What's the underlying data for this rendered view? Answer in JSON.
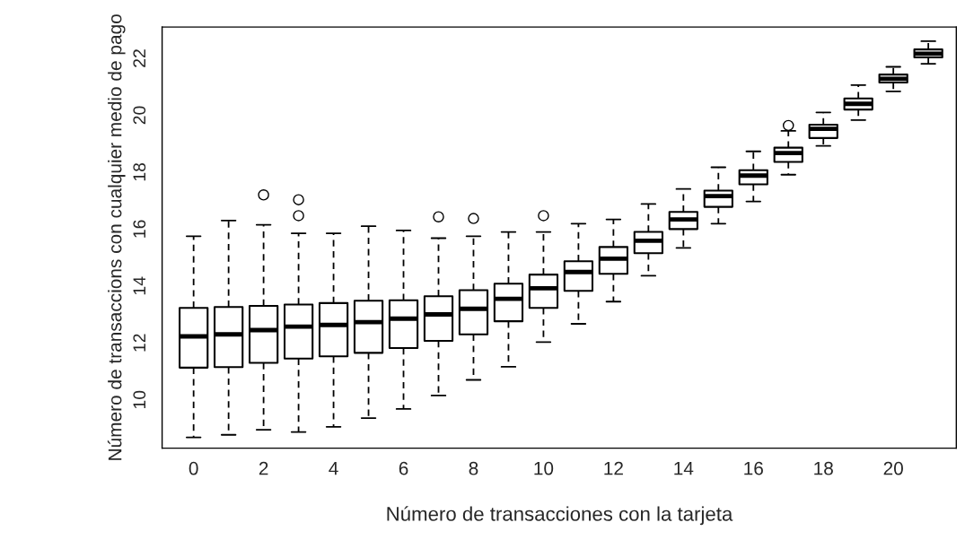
{
  "chart_data": {
    "type": "box",
    "xlabel": "Número de transacciones con la tarjeta",
    "ylabel": "Número de transaccions con cualquier medio de pago",
    "categories": [
      "0",
      null,
      "2",
      null,
      "4",
      null,
      "6",
      null,
      "8",
      null,
      "10",
      null,
      "12",
      null,
      "14",
      null,
      "16",
      null,
      "18",
      null,
      "20",
      null
    ],
    "boxes": [
      {
        "low": 8.68,
        "q1": 11.13,
        "median": 12.23,
        "q3": 13.23,
        "high": 15.75
      },
      {
        "low": 8.77,
        "q1": 11.15,
        "median": 12.3,
        "q3": 13.26,
        "high": 16.3
      },
      {
        "low": 8.95,
        "q1": 11.3,
        "median": 12.45,
        "q3": 13.3,
        "high": 16.15,
        "outliers": [
          17.2
        ]
      },
      {
        "low": 8.87,
        "q1": 11.45,
        "median": 12.57,
        "q3": 13.35,
        "high": 15.85,
        "outliers": [
          16.47,
          17.03
        ]
      },
      {
        "low": 9.05,
        "q1": 11.53,
        "median": 12.63,
        "q3": 13.4,
        "high": 15.85
      },
      {
        "low": 9.36,
        "q1": 11.65,
        "median": 12.73,
        "q3": 13.48,
        "high": 16.1
      },
      {
        "low": 9.68,
        "q1": 11.82,
        "median": 12.85,
        "q3": 13.5,
        "high": 15.95
      },
      {
        "low": 10.15,
        "q1": 12.07,
        "median": 13.0,
        "q3": 13.64,
        "high": 15.68,
        "outliers": [
          16.43
        ]
      },
      {
        "low": 10.7,
        "q1": 12.3,
        "median": 13.2,
        "q3": 13.85,
        "high": 15.75,
        "outliers": [
          16.37
        ]
      },
      {
        "low": 11.16,
        "q1": 12.76,
        "median": 13.55,
        "q3": 14.08,
        "high": 15.9
      },
      {
        "low": 12.03,
        "q1": 13.23,
        "median": 13.92,
        "q3": 14.4,
        "high": 15.9,
        "outliers": [
          16.47
        ]
      },
      {
        "low": 12.67,
        "q1": 13.83,
        "median": 14.49,
        "q3": 14.87,
        "high": 16.19
      },
      {
        "low": 13.45,
        "q1": 14.43,
        "median": 14.96,
        "q3": 15.37,
        "high": 16.34
      },
      {
        "low": 14.36,
        "q1": 15.15,
        "median": 15.59,
        "q3": 15.9,
        "high": 16.88
      },
      {
        "low": 15.34,
        "q1": 16.0,
        "median": 16.34,
        "q3": 16.6,
        "high": 17.41
      },
      {
        "low": 16.19,
        "q1": 16.78,
        "median": 17.16,
        "q3": 17.35,
        "high": 18.17
      },
      {
        "low": 16.97,
        "q1": 17.57,
        "median": 17.88,
        "q3": 18.07,
        "high": 18.73
      },
      {
        "low": 17.91,
        "q1": 18.36,
        "median": 18.67,
        "q3": 18.86,
        "high": 19.45,
        "outliers": [
          19.64
        ]
      },
      {
        "low": 18.92,
        "q1": 19.2,
        "median": 19.52,
        "q3": 19.67,
        "high": 20.1
      },
      {
        "low": 19.83,
        "q1": 20.2,
        "median": 20.4,
        "q3": 20.59,
        "high": 21.06
      },
      {
        "low": 20.84,
        "q1": 21.15,
        "median": 21.28,
        "q3": 21.43,
        "high": 21.7
      },
      {
        "low": 21.81,
        "q1": 22.03,
        "median": 22.16,
        "q3": 22.31,
        "high": 22.6
      }
    ],
    "ylim": [
      8.3,
      23.1
    ],
    "yticks": [
      10,
      12,
      14,
      16,
      18,
      20,
      22
    ],
    "grid": false,
    "legend": false
  }
}
